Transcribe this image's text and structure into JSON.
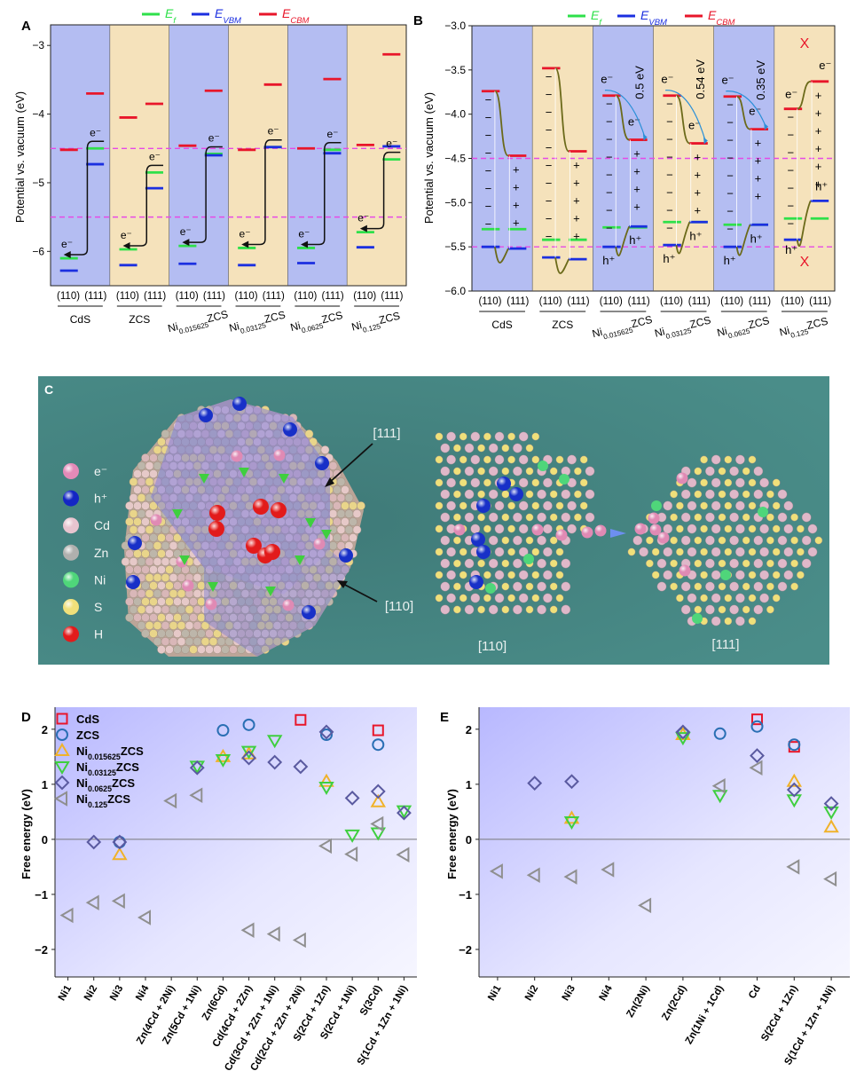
{
  "colors": {
    "ef": "#2ee04a",
    "evbm": "#1b2fe0",
    "ecbm": "#e8162a",
    "blue_bg": "#b4bdf2",
    "tan_bg": "#f5e2bb",
    "dash": "#e64ae6",
    "step": "#6b6a1a"
  },
  "legend_top": {
    "ef": "E",
    "ef_sub": "f",
    "evbm": "E",
    "evbm_sub": "VBM",
    "ecbm": "E",
    "ecbm_sub": "CBM"
  },
  "materials": [
    {
      "main": "CdS",
      "sub": "",
      "tail": ""
    },
    {
      "main": "ZCS",
      "sub": "",
      "tail": ""
    },
    {
      "main": "Ni",
      "sub": "0.015625",
      "tail": "ZCS"
    },
    {
      "main": "Ni",
      "sub": "0.03125",
      "tail": "ZCS"
    },
    {
      "main": "Ni",
      "sub": "0.0625",
      "tail": "ZCS"
    },
    {
      "main": "Ni",
      "sub": "0.125",
      "tail": "ZCS"
    }
  ],
  "facets": [
    "(110)",
    "(111)"
  ],
  "carrier_labels": {
    "e": "e⁻",
    "h": "h⁺",
    "x": "X"
  },
  "chart_data": [
    {
      "panel": "A",
      "type": "bar",
      "ylabel": "Potential vs. vacuum (eV)",
      "ylim": [
        -6.5,
        -2.7
      ],
      "yticks": [
        -3,
        -4,
        -5,
        -6
      ],
      "ytick_labels": [
        "−3",
        "−4",
        "−5",
        "−6"
      ],
      "reference_lines": [
        -4.5,
        -5.5
      ],
      "series": [
        {
          "name": "Ef",
          "facet": "(110)",
          "values": [
            -6.1,
            -5.97,
            -5.92,
            -5.95,
            -5.95,
            -5.72
          ]
        },
        {
          "name": "Ef",
          "facet": "(111)",
          "values": [
            -4.5,
            -4.85,
            -4.58,
            -4.48,
            -4.52,
            -4.66
          ]
        },
        {
          "name": "EVBM",
          "facet": "(110)",
          "values": [
            -6.28,
            -6.2,
            -6.18,
            -6.2,
            -6.17,
            -5.94
          ]
        },
        {
          "name": "EVBM",
          "facet": "(111)",
          "values": [
            -4.73,
            -5.08,
            -4.6,
            -4.48,
            -4.57,
            -4.47
          ]
        },
        {
          "name": "ECBM",
          "facet": "(110)",
          "values": [
            -4.52,
            -4.05,
            -4.46,
            -4.52,
            -4.5,
            -4.45
          ]
        },
        {
          "name": "ECBM",
          "facet": "(111)",
          "values": [
            -3.7,
            -3.85,
            -3.66,
            -3.57,
            -3.49,
            -3.13
          ]
        }
      ]
    },
    {
      "panel": "B",
      "type": "bar",
      "ylabel": "Potential vs. vacuum (eV)",
      "ylim": [
        -6.0,
        -3.0
      ],
      "yticks": [
        -3.0,
        -3.5,
        -4.0,
        -4.5,
        -5.0,
        -5.5,
        -6.0
      ],
      "ytick_labels": [
        "−3.0",
        "−3.5",
        "−4.0",
        "−4.5",
        "−5.0",
        "−5.5",
        "−6.0"
      ],
      "reference_lines": [
        -4.5,
        -5.5
      ],
      "band_offsets": [
        "0.5 eV",
        "0.54 eV",
        "0.35 eV"
      ],
      "series": [
        {
          "name": "Ef",
          "facet": "(110)",
          "values": [
            -5.3,
            -5.42,
            -5.28,
            -5.22,
            -5.25,
            -5.18
          ]
        },
        {
          "name": "Ef",
          "facet": "(111)",
          "values": [
            -5.3,
            -5.42,
            -5.28,
            -5.22,
            -5.25,
            -5.18
          ]
        },
        {
          "name": "EVBM",
          "facet": "(110)",
          "values": [
            -5.5,
            -5.62,
            -5.5,
            -5.48,
            -5.5,
            -5.42
          ]
        },
        {
          "name": "EVBM",
          "facet": "(111)",
          "values": [
            -5.52,
            -5.64,
            -5.27,
            -5.22,
            -5.25,
            -4.98
          ]
        },
        {
          "name": "ECBM",
          "facet": "(110)",
          "values": [
            -3.74,
            -3.48,
            -3.79,
            -3.79,
            -3.8,
            -3.94
          ]
        },
        {
          "name": "ECBM",
          "facet": "(111)",
          "values": [
            -4.47,
            -4.42,
            -4.29,
            -4.33,
            -4.17,
            -3.63
          ]
        }
      ]
    },
    {
      "panel": "D",
      "type": "scatter",
      "ylabel": "Free energy (eV)",
      "ylim": [
        -2.5,
        2.4
      ],
      "yticks": [
        2,
        1,
        0,
        -1,
        -2
      ],
      "ytick_labels": [
        "2",
        "1",
        "0",
        "−1",
        "−2"
      ],
      "categories": [
        "Ni1",
        "Ni2",
        "Ni3",
        "Ni4",
        "Zn(4Cd + 2Ni)",
        "Zn(5Cd + 1Ni)",
        "Zn(6Cd)",
        "Cd(4Cd + 2Zn)",
        "Cd(3Cd + 2Zn + 1Ni)",
        "Cd(2Cd + 2Zn + 2Ni)",
        "S(2Cd + 1Zn)",
        "S(2Cd + 1Ni)",
        "S(3Cd)",
        "S(1Cd + 1Zn + 1Ni)"
      ],
      "legend": [
        {
          "main": "CdS",
          "sub": "",
          "tail": ""
        },
        {
          "main": "ZCS",
          "sub": "",
          "tail": ""
        },
        {
          "main": "Ni",
          "sub": "0.015625",
          "tail": "ZCS"
        },
        {
          "main": "Ni",
          "sub": "0.03125",
          "tail": "ZCS"
        },
        {
          "main": "Ni",
          "sub": "0.0625",
          "tail": "ZCS"
        },
        {
          "main": "Ni",
          "sub": "0.125",
          "tail": "ZCS"
        }
      ],
      "series": [
        {
          "name": "CdS",
          "values": [
            null,
            null,
            null,
            null,
            null,
            null,
            null,
            null,
            null,
            2.17,
            null,
            null,
            1.98,
            null
          ]
        },
        {
          "name": "ZCS",
          "values": [
            null,
            null,
            -0.05,
            null,
            null,
            null,
            1.98,
            2.08,
            null,
            null,
            1.9,
            null,
            1.72,
            null
          ]
        },
        {
          "name": "Ni0.015625ZCS",
          "values": [
            null,
            null,
            -0.28,
            null,
            null,
            null,
            1.5,
            1.55,
            null,
            null,
            1.05,
            null,
            0.68,
            null
          ]
        },
        {
          "name": "Ni0.03125ZCS",
          "values": [
            null,
            null,
            null,
            null,
            null,
            1.33,
            1.45,
            1.6,
            1.8,
            null,
            0.95,
            0.08,
            0.12,
            0.52
          ]
        },
        {
          "name": "Ni0.0625ZCS",
          "values": [
            null,
            -0.05,
            -0.05,
            null,
            null,
            1.3,
            null,
            1.48,
            1.4,
            1.32,
            1.95,
            0.75,
            0.87,
            0.48
          ]
        },
        {
          "name": "Ni0.125ZCS",
          "values": [
            -1.38,
            -1.15,
            -1.12,
            -1.42,
            0.7,
            0.8,
            null,
            -1.65,
            -1.72,
            -1.83,
            -0.12,
            -0.27,
            0.28,
            -0.28
          ]
        }
      ]
    },
    {
      "panel": "E",
      "type": "scatter",
      "ylabel": "Free energy (eV)",
      "ylim": [
        -2.5,
        2.4
      ],
      "yticks": [
        2,
        1,
        0,
        -1,
        -2
      ],
      "ytick_labels": [
        "2",
        "1",
        "0",
        "−1",
        "−2"
      ],
      "categories": [
        "Ni1",
        "Ni2",
        "Ni3",
        "Ni4",
        "Zn(2Ni)",
        "Zn(2Cd)",
        "Zn(1Ni + 1Cd)",
        "Cd",
        "S(2Cd + 1Zn)",
        "S(1Cd + 1Zn + 1Ni)"
      ],
      "series": [
        {
          "name": "CdS",
          "values": [
            null,
            null,
            null,
            null,
            null,
            null,
            null,
            2.18,
            1.68,
            null
          ]
        },
        {
          "name": "ZCS",
          "values": [
            null,
            null,
            null,
            null,
            null,
            1.92,
            1.92,
            2.05,
            1.72,
            null
          ]
        },
        {
          "name": "Ni0.015625ZCS",
          "values": [
            null,
            null,
            0.38,
            null,
            null,
            1.9,
            null,
            null,
            1.05,
            0.22
          ]
        },
        {
          "name": "Ni0.03125ZCS",
          "values": [
            null,
            null,
            0.32,
            null,
            null,
            1.85,
            0.8,
            null,
            0.72,
            0.5
          ]
        },
        {
          "name": "Ni0.0625ZCS",
          "values": [
            null,
            1.02,
            1.05,
            null,
            null,
            1.95,
            null,
            1.52,
            0.9,
            0.65
          ]
        },
        {
          "name": "Ni0.125ZCS",
          "values": [
            -0.58,
            -0.65,
            -0.68,
            -0.55,
            -1.2,
            null,
            0.97,
            1.3,
            -0.5,
            -0.72
          ]
        }
      ]
    }
  ],
  "panel_c": {
    "legend": [
      {
        "key": "e",
        "label": "e⁻",
        "color": "#e48ab8"
      },
      {
        "key": "h",
        "label": "h⁺",
        "color": "#1426c4"
      },
      {
        "key": "Cd",
        "label": "Cd",
        "color": "#e8c4cf"
      },
      {
        "key": "Zn",
        "label": "Zn",
        "color": "#b0b0ae"
      },
      {
        "key": "Ni",
        "label": "Ni",
        "color": "#4fd67a"
      },
      {
        "key": "S",
        "label": "S",
        "color": "#f0e07a"
      },
      {
        "key": "H",
        "label": "H",
        "color": "#e21b1b"
      }
    ],
    "callout_111": "[111]",
    "callout_110": "[110]",
    "lattice_110_label": "[110]",
    "lattice_111_label": "[111]"
  }
}
